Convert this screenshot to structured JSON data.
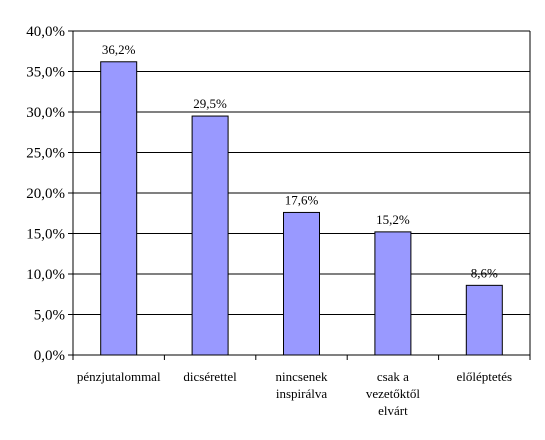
{
  "chart_data": {
    "type": "bar",
    "categories": [
      [
        "pénzjutalommal"
      ],
      [
        "dicsérettel"
      ],
      [
        "nincsenek",
        "inspirálva"
      ],
      [
        "csak a",
        "vezetőktől",
        "elvárt"
      ],
      [
        "előléptetés"
      ]
    ],
    "values": [
      36.2,
      29.5,
      17.6,
      15.2,
      8.6
    ],
    "value_labels": [
      "36,2%",
      "29,5%",
      "17,6%",
      "15,2%",
      "8,6%"
    ],
    "ylim": [
      0,
      40
    ],
    "y_ticks": [
      "0,0%",
      "5,0%",
      "10,0%",
      "15,0%",
      "20,0%",
      "25,0%",
      "30,0%",
      "35,0%",
      "40,0%"
    ],
    "grid": true,
    "colors": {
      "bar_fill": "#9999FF",
      "bar_stroke": "#000000",
      "grid": "#000000"
    }
  }
}
